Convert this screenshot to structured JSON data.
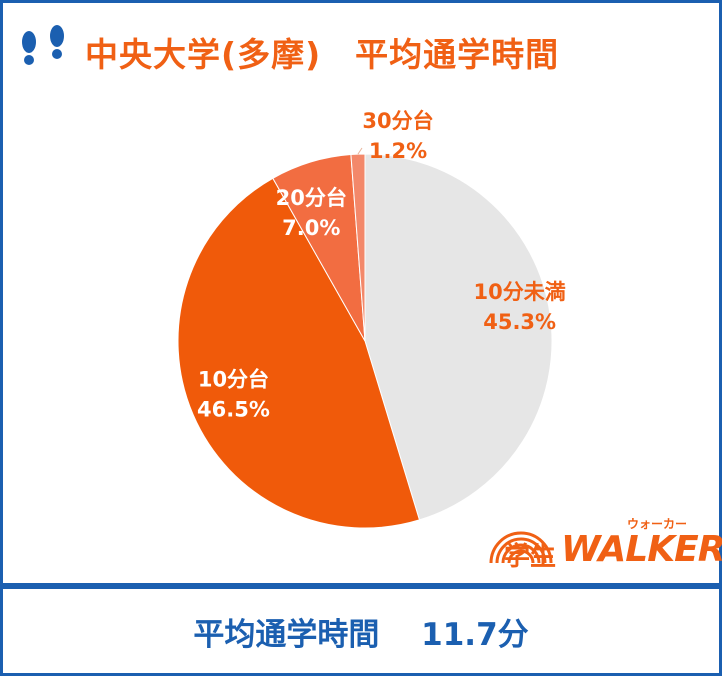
{
  "header": {
    "title": "中央大学(多摩)　平均通学時間",
    "icon": "footprints-icon"
  },
  "colors": {
    "frame": "#1b5fb0",
    "accent": "#f06014",
    "label_text": "#f06014",
    "footer_text": "#1b5fb0"
  },
  "chart_data": {
    "type": "pie",
    "title": "中央大学(多摩)　平均通学時間",
    "slices": [
      {
        "label": "10分未満",
        "percent_label": "45.3%",
        "value": 45.3,
        "color": "#e6e6e6",
        "label_color": "#f06014"
      },
      {
        "label": "10分台",
        "percent_label": "46.5%",
        "value": 46.5,
        "color": "#f05a0a",
        "label_color": "#ffffff"
      },
      {
        "label": "20分台",
        "percent_label": "7.0%",
        "value": 7.0,
        "color": "#f26d41",
        "label_color": "#ffffff"
      },
      {
        "label": "30分台",
        "percent_label": "1.2%",
        "value": 1.2,
        "color": "#f3886a",
        "label_color": "#f06014"
      }
    ],
    "start_angle_deg": 0,
    "direction": "clockwise",
    "legend": "none"
  },
  "footer": {
    "text": "平均通学時間　 11.7分"
  },
  "logo": {
    "gaku": "学生",
    "walker": "WALKER",
    "kana": "ウォーカー"
  }
}
